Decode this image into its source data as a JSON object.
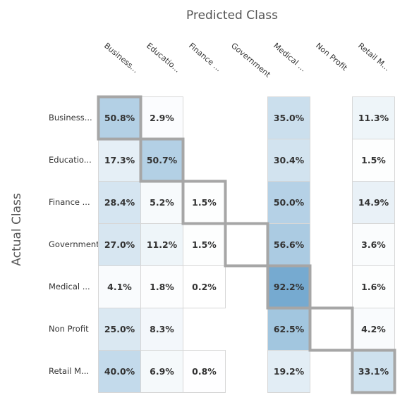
{
  "chart_data": {
    "type": "heatmap",
    "title": "",
    "xlabel": "Predicted Class",
    "ylabel": "Actual Class",
    "x_tick_labels": [
      "Business...",
      "Educatio...",
      "Finance ...",
      "Government",
      "Medical ...",
      "Non Profit",
      "Retail M..."
    ],
    "y_tick_labels": [
      "Business...",
      "Educatio...",
      "Finance ...",
      "Government",
      "Medical ...",
      "Non Profit",
      "Retail M..."
    ],
    "cells": [
      [
        50.8,
        2.9,
        null,
        null,
        35.0,
        null,
        11.3
      ],
      [
        17.3,
        50.7,
        null,
        null,
        30.4,
        null,
        1.5
      ],
      [
        28.4,
        5.2,
        1.5,
        null,
        50.0,
        null,
        14.9
      ],
      [
        27.0,
        11.2,
        1.5,
        null,
        56.6,
        null,
        3.6
      ],
      [
        4.1,
        1.8,
        0.2,
        null,
        92.2,
        null,
        1.6
      ],
      [
        25.0,
        8.3,
        null,
        null,
        62.5,
        null,
        4.2
      ],
      [
        40.0,
        6.9,
        0.8,
        null,
        19.2,
        null,
        33.1
      ]
    ],
    "cell_labels": [
      [
        "50.8%",
        "2.9%",
        "",
        "",
        "35.0%",
        "",
        "11.3%"
      ],
      [
        "17.3%",
        "50.7%",
        "",
        "",
        "30.4%",
        "",
        "1.5%"
      ],
      [
        "28.4%",
        "5.2%",
        "1.5%",
        "",
        "50.0%",
        "",
        "14.9%"
      ],
      [
        "27.0%",
        "11.2%",
        "1.5%",
        "",
        "56.6%",
        "",
        "3.6%"
      ],
      [
        "4.1%",
        "1.8%",
        "0.2%",
        "",
        "92.2%",
        "",
        "1.6%"
      ],
      [
        "25.0%",
        "8.3%",
        "",
        "",
        "62.5%",
        "",
        "4.2%"
      ],
      [
        "40.0%",
        "6.9%",
        "0.8%",
        "",
        "19.2%",
        "",
        "33.1%"
      ]
    ],
    "value_range": [
      0,
      100
    ],
    "colors": {
      "low": "#ffffff",
      "high": "#6aa3cc",
      "cell_border": "#d7d7d7",
      "diagonal_border": "#a6a6a6"
    },
    "diagonal_highlight": true,
    "grid": true
  }
}
